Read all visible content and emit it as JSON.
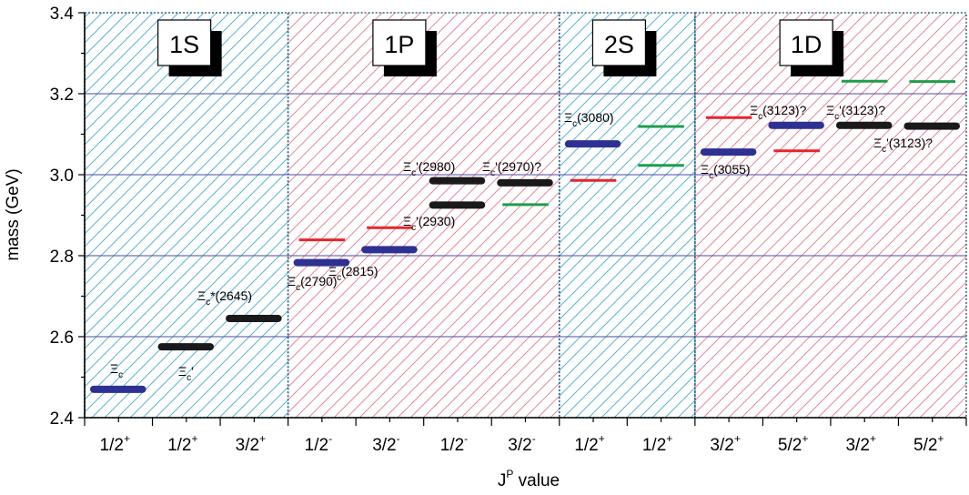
{
  "chart_data": {
    "type": "level-diagram",
    "xlabel": "J",
    "xlabel_sup": "P",
    "xlabel_suffix": " value",
    "ylabel": "mass (GeV)",
    "ylim": [
      2.4,
      3.4
    ],
    "yticks": [
      "2.4",
      "2.6",
      "2.8",
      "3.0",
      "3.2",
      "3.4"
    ],
    "colors": {
      "blue": "#2e3192",
      "black": "#1a1a1a",
      "red": "#e8242b",
      "green": "#1d9e4a",
      "cyan_hatch": "#5ab4d6",
      "pink_hatch": "#e7879c",
      "band_border": "#2a6a8a",
      "grid": "#4b4ba0"
    },
    "bands": [
      {
        "label": "1S",
        "style": "cyan",
        "from": 0,
        "to": 3
      },
      {
        "label": "1P",
        "style": "pink",
        "from": 3,
        "to": 7
      },
      {
        "label": "2S",
        "style": "cyan",
        "from": 7,
        "to": 9
      },
      {
        "label": "1D",
        "style": "pink",
        "from": 9,
        "to": 13
      }
    ],
    "columns": [
      {
        "base": "1/2",
        "sup": "+"
      },
      {
        "base": "1/2",
        "sup": "+"
      },
      {
        "base": "3/2",
        "sup": "+"
      },
      {
        "base": "1/2",
        "sup": "-"
      },
      {
        "base": "3/2",
        "sup": "-"
      },
      {
        "base": "1/2",
        "sup": "-"
      },
      {
        "base": "3/2",
        "sup": "-"
      },
      {
        "base": "1/2",
        "sup": "+"
      },
      {
        "base": "1/2",
        "sup": "+"
      },
      {
        "base": "3/2",
        "sup": "+"
      },
      {
        "base": "5/2",
        "sup": "+"
      },
      {
        "base": "3/2",
        "sup": "+"
      },
      {
        "base": "5/2",
        "sup": "+"
      }
    ],
    "levels": [
      {
        "col": 0,
        "mass": 2.47,
        "color": "blue",
        "kind": "exp"
      },
      {
        "col": 1,
        "mass": 2.575,
        "color": "black",
        "kind": "exp"
      },
      {
        "col": 2,
        "mass": 2.645,
        "color": "black",
        "kind": "exp"
      },
      {
        "col": 3,
        "mass": 2.783,
        "color": "blue",
        "kind": "exp"
      },
      {
        "col": 3,
        "mass": 2.839,
        "color": "red",
        "kind": "th"
      },
      {
        "col": 4,
        "mass": 2.815,
        "color": "blue",
        "kind": "exp"
      },
      {
        "col": 4,
        "mass": 2.869,
        "color": "red",
        "kind": "th"
      },
      {
        "col": 5,
        "mass": 2.985,
        "color": "black",
        "kind": "exp"
      },
      {
        "col": 5,
        "mass": 2.925,
        "color": "black",
        "kind": "exp"
      },
      {
        "col": 6,
        "mass": 2.98,
        "color": "black",
        "kind": "exp"
      },
      {
        "col": 6,
        "mass": 2.926,
        "color": "green",
        "kind": "th"
      },
      {
        "col": 7,
        "mass": 3.076,
        "color": "blue",
        "kind": "exp"
      },
      {
        "col": 7,
        "mass": 2.986,
        "color": "red",
        "kind": "th"
      },
      {
        "col": 8,
        "mass": 3.119,
        "color": "green",
        "kind": "th"
      },
      {
        "col": 8,
        "mass": 3.023,
        "color": "green",
        "kind": "th"
      },
      {
        "col": 9,
        "mass": 3.056,
        "color": "blue",
        "kind": "exp"
      },
      {
        "col": 9,
        "mass": 3.141,
        "color": "red",
        "kind": "th"
      },
      {
        "col": 10,
        "mass": 3.122,
        "color": "blue",
        "kind": "exp"
      },
      {
        "col": 10,
        "mass": 3.059,
        "color": "red",
        "kind": "th"
      },
      {
        "col": 11,
        "mass": 3.122,
        "color": "black",
        "kind": "exp"
      },
      {
        "col": 11,
        "mass": 3.231,
        "color": "green",
        "kind": "th"
      },
      {
        "col": 12,
        "mass": 3.12,
        "color": "black",
        "kind": "exp"
      },
      {
        "col": 12,
        "mass": 3.23,
        "color": "green",
        "kind": "th"
      }
    ],
    "annotations": [
      {
        "base": "Ξ",
        "sub": "c",
        "rest": ""
      },
      {
        "base": "Ξ",
        "sub": "c",
        "rest": "'"
      },
      {
        "base": "Ξ",
        "sub": "c",
        "rest": "*(2645)"
      },
      {
        "base": "Ξ",
        "sub": "c",
        "rest": "(2790)"
      },
      {
        "base": "Ξ",
        "sub": "c",
        "rest": "(2815)"
      },
      {
        "base": "Ξ",
        "sub": "c",
        "rest": "'(2980)"
      },
      {
        "base": "Ξ",
        "sub": "c",
        "rest": "'(2930)"
      },
      {
        "base": "Ξ",
        "sub": "c",
        "rest": "'(2970)?"
      },
      {
        "base": "Ξ",
        "sub": "c",
        "rest": "(3080)"
      },
      {
        "base": "Ξ",
        "sub": "c",
        "rest": "(3055)"
      },
      {
        "base": "Ξ",
        "sub": "c",
        "rest": "(3123)?"
      },
      {
        "base": "Ξ",
        "sub": "c",
        "rest": "'(3123)?"
      },
      {
        "base": "Ξ",
        "sub": "c",
        "rest": "'(3123)?"
      }
    ]
  }
}
